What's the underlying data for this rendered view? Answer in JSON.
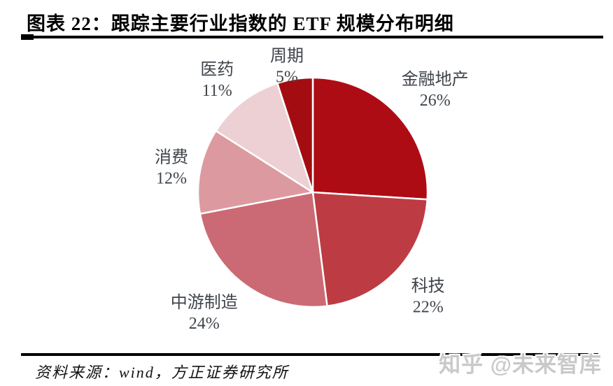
{
  "page": {
    "background": "#ffffff"
  },
  "header": {
    "title": "图表 22：跟踪主要行业指数的 ETF 规模分布明细"
  },
  "chart_data": {
    "type": "pie",
    "title": "跟踪主要行业指数的 ETF 规模分布明细",
    "figure_label": "图表 22",
    "start_angle_deg": 0,
    "direction": "clockwise",
    "labels_position": "outside",
    "legend": "none",
    "slice_border_color": "#ffffff",
    "label_text_color": "#3f444b",
    "slices": [
      {
        "label": "金融地产",
        "value": 26,
        "percent_label": "26%",
        "color": "#ae0c15",
        "label_angle_deg": 50.0,
        "label_r": 228
      },
      {
        "label": "科技",
        "value": 22,
        "percent_label": "22%",
        "color": "#bd3c44",
        "label_angle_deg": 132.1,
        "label_r": 222
      },
      {
        "label": "中游制造",
        "value": 24,
        "percent_label": "24%",
        "color": "#cb6a74",
        "label_angle_deg": 222.0,
        "label_r": 232
      },
      {
        "label": "消费",
        "value": 12,
        "percent_label": "12%",
        "color": "#dc9aa0",
        "label_angle_deg": 279.8,
        "label_r": 205
      },
      {
        "label": "医药",
        "value": 11,
        "percent_label": "11%",
        "color": "#ecd0d3",
        "label_angle_deg": 319.6,
        "label_r": 211
      },
      {
        "label": "周期",
        "value": 5,
        "percent_label": "5%",
        "color": "#a30d12",
        "label_angle_deg": 348.4,
        "label_r": 184
      }
    ]
  },
  "footer": {
    "source": "资料来源：wind，方正证券研究所",
    "watermark": "知乎 @未来智库"
  }
}
